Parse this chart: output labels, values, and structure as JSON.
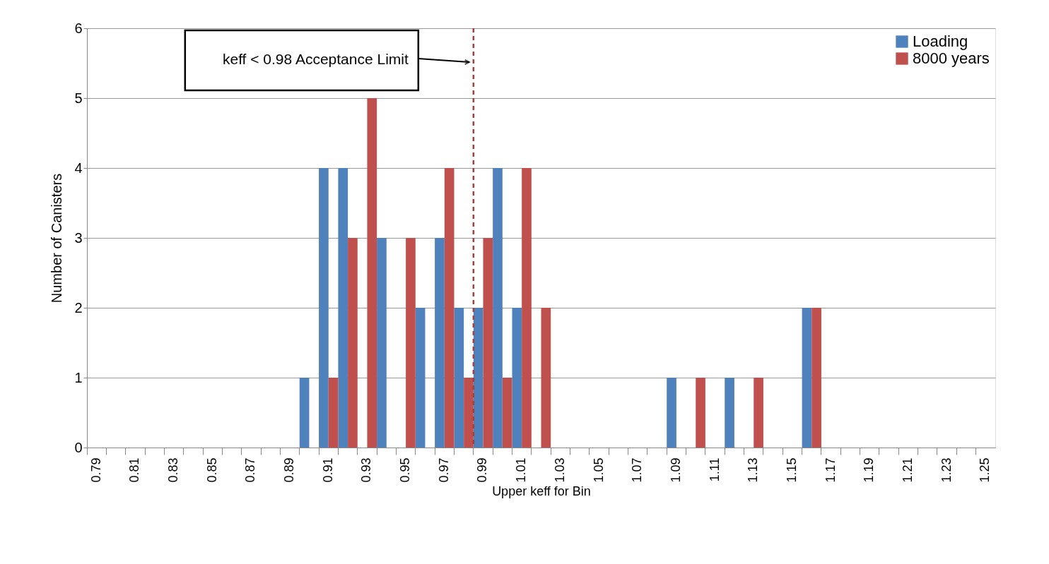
{
  "chart_data": {
    "type": "bar",
    "xlabel": "Upper keff for Bin",
    "ylabel": "Number of Canisters",
    "categories": [
      "0.79",
      null,
      "0.81",
      null,
      "0.83",
      null,
      "0.85",
      null,
      "0.87",
      null,
      "0.89",
      null,
      "0.91",
      null,
      "0.93",
      null,
      "0.95",
      null,
      "0.97",
      null,
      "0.99",
      null,
      "1.01",
      null,
      "1.03",
      null,
      "1.05",
      null,
      "1.07",
      null,
      "1.09",
      null,
      "1.11",
      null,
      "1.13",
      null,
      "1.15",
      null,
      "1.17",
      null,
      "1.19",
      null,
      "1.21",
      null,
      "1.23",
      null,
      "1.25"
    ],
    "series": [
      {
        "name": "Loading",
        "color": "#4f81bd",
        "values": [
          0,
          0,
          0,
          0,
          0,
          0,
          0,
          0,
          0,
          0,
          0,
          1,
          4,
          4,
          0,
          3,
          0,
          2,
          3,
          2,
          2,
          4,
          2,
          0,
          0,
          0,
          0,
          0,
          0,
          0,
          1,
          0,
          0,
          1,
          0,
          0,
          0,
          2,
          0,
          0,
          0,
          0,
          0,
          0,
          0,
          0,
          0
        ]
      },
      {
        "name": "8000 years",
        "color": "#c0504d",
        "values": [
          0,
          0,
          0,
          0,
          0,
          0,
          0,
          0,
          0,
          0,
          0,
          0,
          1,
          3,
          5,
          0,
          3,
          0,
          4,
          1,
          3,
          1,
          4,
          2,
          0,
          0,
          0,
          0,
          0,
          0,
          0,
          1,
          0,
          0,
          1,
          0,
          0,
          2,
          0,
          0,
          0,
          0,
          0,
          0,
          0,
          0,
          0
        ]
      }
    ],
    "ylim": [
      0,
      6
    ],
    "yticks": [
      0,
      1,
      2,
      3,
      4,
      5,
      6
    ],
    "grid": "y",
    "legend": "top right",
    "ref_lines": [
      {
        "axis": "x",
        "value": "0.99",
        "label": "keff < 0.98 Acceptance Limit",
        "color": "#a5403c",
        "line_style": "dashed"
      }
    ]
  }
}
